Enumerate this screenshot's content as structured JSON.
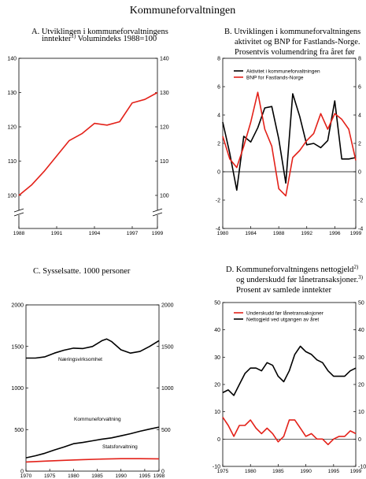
{
  "page_title": "Kommuneforvaltningen",
  "colors": {
    "red": "#e32119",
    "black": "#000000"
  },
  "chart_data": [
    {
      "id": "A",
      "type": "line",
      "title_lines": [
        "A.  Utviklingen i kommuneforvaltningens",
        "inntekter"
      ],
      "title_sup": "1)",
      "title_tail": " Volumindeks 1988=100",
      "ylim": [
        100,
        140
      ],
      "y_ticks": [
        100,
        110,
        120,
        130,
        140
      ],
      "y_tick_labels": [
        "100",
        "110",
        "120",
        "130",
        "140"
      ],
      "axis_break": true,
      "x_ticks": [
        1988,
        1991,
        1994,
        1997,
        1999
      ],
      "x_tick_labels": [
        "1988",
        "1991",
        "1994",
        "1997",
        "1999"
      ],
      "xlim": [
        1988,
        1999
      ],
      "series": [
        {
          "color": "#e32119",
          "x": [
            1988,
            1989,
            1990,
            1991,
            1992,
            1993,
            1994,
            1995,
            1996,
            1997,
            1998,
            1999
          ],
          "values": [
            100,
            103,
            107,
            111.5,
            116,
            118,
            121,
            120.5,
            121.5,
            127,
            128,
            130
          ]
        }
      ]
    },
    {
      "id": "B",
      "type": "line",
      "title_lines": [
        "B.  Utviklingen i kommuneforvaltningens",
        "aktivitet og BNP for Fastlands-Norge.",
        "Prosentvis volumendring fra året før"
      ],
      "ylim": [
        -4,
        8
      ],
      "y_ticks": [
        -4,
        -2,
        0,
        2,
        4,
        6,
        8
      ],
      "y_tick_labels": [
        "-4",
        "-2",
        "0",
        "2",
        "4",
        "6",
        "8"
      ],
      "x_ticks": [
        1980,
        1984,
        1988,
        1992,
        1996,
        1999
      ],
      "x_tick_labels": [
        "1980",
        "1984",
        "1988",
        "1992",
        "1996",
        "1999"
      ],
      "xlim": [
        1980,
        1999
      ],
      "legend": [
        "Aktivitet i kommuneforvaltningen",
        "BNP for Fastlands-Norge"
      ],
      "series": [
        {
          "name": "Aktivitet i kommuneforvaltningen",
          "color": "#000000",
          "x": [
            1980,
            1981,
            1982,
            1983,
            1984,
            1985,
            1986,
            1987,
            1988,
            1989,
            1990,
            1991,
            1992,
            1993,
            1994,
            1995,
            1996,
            1997,
            1998,
            1999
          ],
          "values": [
            3.5,
            1.3,
            -1.3,
            2.5,
            2.1,
            3.1,
            4.5,
            4.6,
            2.3,
            -0.8,
            5.5,
            3.9,
            1.9,
            2.0,
            1.7,
            2.2,
            5.0,
            0.9,
            0.9,
            1.0
          ]
        },
        {
          "name": "BNP for Fastlands-Norge",
          "color": "#e32119",
          "x": [
            1980,
            1981,
            1982,
            1983,
            1984,
            1985,
            1986,
            1987,
            1988,
            1989,
            1990,
            1991,
            1992,
            1993,
            1994,
            1995,
            1996,
            1997,
            1998,
            1999
          ],
          "values": [
            2.5,
            0.9,
            0.3,
            1.8,
            3.5,
            5.6,
            3.0,
            1.8,
            -1.2,
            -1.7,
            1.0,
            1.5,
            2.2,
            2.7,
            4.1,
            3.0,
            4.1,
            3.7,
            3.0,
            0.8
          ]
        }
      ]
    },
    {
      "id": "C",
      "type": "line",
      "title_lines": [
        "C.  Sysselsatte. 1000 personer"
      ],
      "ylim": [
        0,
        2000
      ],
      "y_ticks": [
        0,
        500,
        1000,
        1500,
        2000
      ],
      "y_tick_labels": [
        "0",
        "500",
        "1000",
        "1500",
        "2000"
      ],
      "x_ticks": [
        1970,
        1975,
        1980,
        1985,
        1990,
        1995,
        1998
      ],
      "x_tick_labels": [
        "1970",
        "1975",
        "1980",
        "1985",
        "1990",
        "1995",
        "1998"
      ],
      "xlim": [
        1970,
        1998
      ],
      "annotations": [
        "Næringsvirksomhet",
        "Kommuneforvaltning",
        "Statsforvaltning"
      ],
      "series": [
        {
          "name": "Næringsvirksomhet",
          "color": "#000000",
          "x": [
            1970,
            1972,
            1974,
            1976,
            1978,
            1980,
            1982,
            1984,
            1986,
            1987,
            1988,
            1990,
            1992,
            1994,
            1996,
            1998
          ],
          "values": [
            1360,
            1360,
            1375,
            1420,
            1455,
            1480,
            1475,
            1500,
            1570,
            1590,
            1560,
            1460,
            1420,
            1440,
            1500,
            1570
          ]
        },
        {
          "name": "Kommuneforvaltning",
          "color": "#000000",
          "x": [
            1970,
            1972,
            1974,
            1976,
            1978,
            1980,
            1982,
            1984,
            1986,
            1988,
            1990,
            1992,
            1994,
            1996,
            1998
          ],
          "values": [
            160,
            185,
            215,
            255,
            290,
            330,
            345,
            365,
            385,
            400,
            425,
            450,
            480,
            505,
            530
          ]
        },
        {
          "name": "Statsforvaltning",
          "color": "#e32119",
          "x": [
            1970,
            1974,
            1978,
            1982,
            1986,
            1990,
            1994,
            1998
          ],
          "values": [
            110,
            120,
            130,
            138,
            145,
            150,
            150,
            148
          ]
        }
      ]
    },
    {
      "id": "D",
      "type": "line",
      "title_lines": [
        "D.  Kommuneforvaltningens nettogjeld",
        "og underskudd før lånetransaksjoner.",
        "Prosent av samlede inntekter"
      ],
      "title_sups": [
        "2)",
        "3)",
        ""
      ],
      "ylim": [
        -10,
        50
      ],
      "y_ticks": [
        -10,
        0,
        10,
        20,
        30,
        40,
        50
      ],
      "y_tick_labels": [
        "-10",
        "0",
        "10",
        "20",
        "30",
        "40",
        "50"
      ],
      "x_ticks": [
        1975,
        1980,
        1985,
        1990,
        1995,
        1999
      ],
      "x_tick_labels": [
        "1975",
        "1980",
        "1985",
        "1990",
        "1995",
        "1999"
      ],
      "xlim": [
        1975,
        1999
      ],
      "legend": [
        "Underskudd før lånetransaksjoner",
        "Nettogjeld ved utgangen av året"
      ],
      "series": [
        {
          "name": "Underskudd før lånetransaksjoner",
          "color": "#e32119",
          "x": [
            1975,
            1976,
            1977,
            1978,
            1979,
            1980,
            1981,
            1982,
            1983,
            1984,
            1985,
            1986,
            1987,
            1988,
            1989,
            1990,
            1991,
            1992,
            1993,
            1994,
            1995,
            1996,
            1997,
            1998,
            1999
          ],
          "values": [
            8,
            5,
            1,
            5,
            5,
            7,
            4,
            2,
            4,
            2,
            -1,
            1,
            7,
            7,
            4,
            1,
            2,
            0,
            0,
            -2,
            0,
            1,
            1,
            3,
            2
          ]
        },
        {
          "name": "Nettogjeld ved utgangen av året",
          "color": "#000000",
          "x": [
            1975,
            1976,
            1977,
            1978,
            1979,
            1980,
            1981,
            1982,
            1983,
            1984,
            1985,
            1986,
            1987,
            1988,
            1989,
            1990,
            1991,
            1992,
            1993,
            1994,
            1995,
            1996,
            1997,
            1998,
            1999
          ],
          "values": [
            17,
            18,
            16,
            20,
            24,
            26,
            26,
            25,
            28,
            27,
            23,
            21,
            25,
            31,
            34,
            32,
            31,
            29,
            28,
            25,
            23,
            23,
            23,
            25,
            26
          ]
        }
      ]
    }
  ]
}
